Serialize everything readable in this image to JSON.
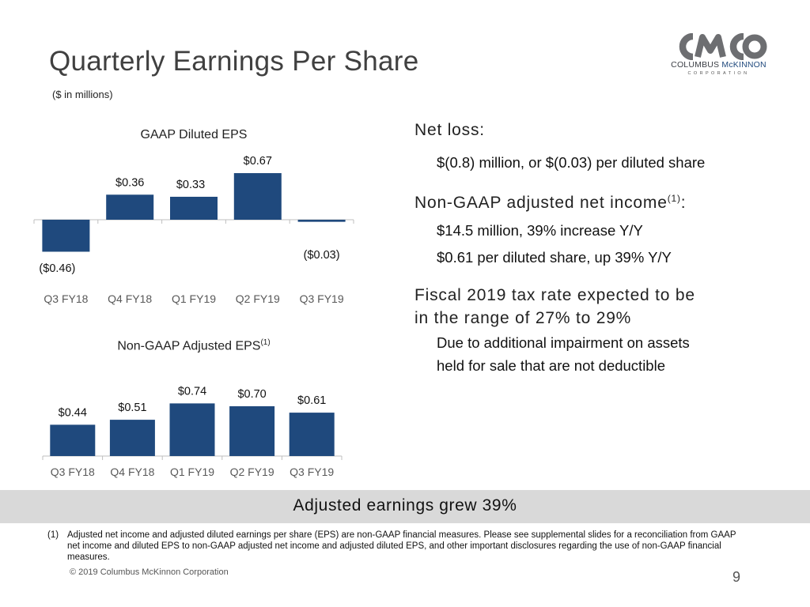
{
  "slide": {
    "title": "Quarterly Earnings Per Share",
    "subtitle": "($ in millions)",
    "page_number": "9",
    "copyright": "© 2019 Columbus McKinnon Corporation"
  },
  "logo": {
    "mark": "CMCO",
    "name_part1": "COLUMBUS ",
    "name_part2": "McKINNON",
    "tagline": "CORPORATION"
  },
  "chart_data": [
    {
      "type": "bar",
      "title": "GAAP Diluted EPS",
      "categories": [
        "Q3 FY18",
        "Q4 FY18",
        "Q1 FY19",
        "Q2 FY19",
        "Q3 FY19"
      ],
      "values": [
        -0.46,
        0.36,
        0.33,
        0.67,
        -0.03
      ],
      "labels": [
        "($0.46)",
        "$0.36",
        "$0.33",
        "$0.67",
        "($0.03)"
      ],
      "color": "#1f497d"
    },
    {
      "type": "bar",
      "title": "Non-GAAP Adjusted EPS",
      "title_superscript": "(1)",
      "categories": [
        "Q3 FY18",
        "Q4 FY18",
        "Q1 FY19",
        "Q2 FY19",
        "Q3 FY19"
      ],
      "values": [
        0.44,
        0.51,
        0.74,
        0.7,
        0.61
      ],
      "labels": [
        "$0.44",
        "$0.51",
        "$0.74",
        "$0.70",
        "$0.61"
      ],
      "color": "#1f497d"
    }
  ],
  "right": {
    "net_loss_heading": "Net loss:",
    "net_loss_detail": "$(0.8) million, or $(0.03) per diluted share",
    "adj_heading": "Non-GAAP adjusted net income",
    "adj_heading_sup": "(1)",
    "adj_heading_colon": ":",
    "adj_detail_1": "$14.5 million, 39% increase Y/Y",
    "adj_detail_2": "$0.61 per diluted share, up 39% Y/Y",
    "tax_heading_1": "Fiscal 2019 tax rate expected to be",
    "tax_heading_2": "in the range of 27% to 29%",
    "tax_detail_1": "Due to additional impairment on assets",
    "tax_detail_2": "held for sale that are not deductible"
  },
  "banner": {
    "text": "Adjusted earnings grew 39%"
  },
  "footnote": {
    "number": "(1)",
    "text": "Adjusted net income and adjusted diluted earnings per share (EPS) are non-GAAP financial measures.  Please see supplemental slides for a reconciliation from GAAP net income and diluted EPS to non-GAAP adjusted net income and adjusted diluted EPS, and other important disclosures regarding the use of non-GAAP financial measures."
  },
  "colors": {
    "bar": "#1f497d",
    "banner": "#d9d9d9",
    "title": "#404040",
    "logo_gray": "#6d6e71",
    "logo_blue": "#1f497d"
  }
}
